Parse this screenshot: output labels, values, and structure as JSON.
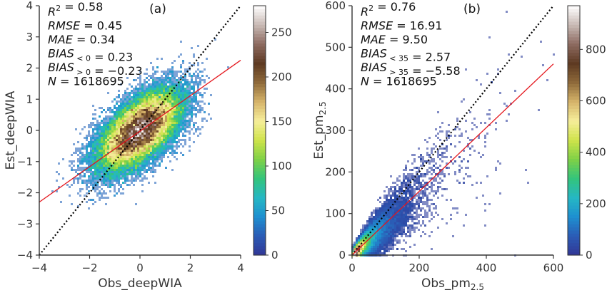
{
  "colors": {
    "regression": "#e4161d",
    "identity": "#000000",
    "axis": "#333333",
    "colormap": [
      "#313695",
      "#2b5bb5",
      "#1e8fd0",
      "#25b7c4",
      "#33c47c",
      "#7ed147",
      "#cfe34a",
      "#f6ee9a",
      "#d6b46a",
      "#8f6a3a",
      "#5e3a22",
      "#8c6a60",
      "#c8b9b4",
      "#ffffff"
    ]
  },
  "chart_data": [
    {
      "panel_label": "(a)",
      "type": "heatmap",
      "xlabel": "Obs_deepWIA",
      "ylabel": "Est_deepWIA",
      "xlim": [
        -4,
        4
      ],
      "ylim": [
        -4,
        4
      ],
      "xticks": [
        "−4",
        "−2",
        "0",
        "2",
        "4"
      ],
      "yticks": [
        "−4",
        "−3",
        "−2",
        "−1",
        "0",
        "1",
        "2",
        "3",
        "4"
      ],
      "stats": [
        {
          "name": "R²",
          "value": "0.58"
        },
        {
          "name": "RMSE",
          "value": "0.45"
        },
        {
          "name": "MAE",
          "value": "0.34"
        },
        {
          "name": "BIAS<0",
          "value": "0.23"
        },
        {
          "name": "BIAS>0",
          "value": "−0.23"
        },
        {
          "name": "N",
          "value": "1618695"
        }
      ],
      "identity_line": [
        [
          -4,
          -4
        ],
        [
          4,
          4
        ]
      ],
      "regression_line": [
        [
          -4,
          -2.3
        ],
        [
          4,
          2.25
        ]
      ],
      "colorbar": {
        "min": 0,
        "max": 280,
        "ticks": [
          "0",
          "50",
          "100",
          "150",
          "200",
          "250"
        ]
      },
      "density": {
        "center": [
          0,
          0
        ],
        "sigma_major": 0.95,
        "sigma_minor": 0.45,
        "angle_deg": 34,
        "peak_count": 275
      }
    },
    {
      "panel_label": "(b)",
      "type": "heatmap",
      "xlabel": "Obs_pm",
      "xlabel_sub": "2.5",
      "ylabel": "Est_pm",
      "ylabel_sub": "2.5",
      "xlim": [
        0,
        600
      ],
      "ylim": [
        0,
        600
      ],
      "xticks": [
        "0",
        "200",
        "400",
        "600"
      ],
      "yticks": [
        "0",
        "100",
        "200",
        "300",
        "400",
        "500",
        "600"
      ],
      "stats": [
        {
          "name": "R²",
          "value": "0.76"
        },
        {
          "name": "RMSE",
          "value": "16.91"
        },
        {
          "name": "MAE",
          "value": "9.50"
        },
        {
          "name": "BIAS<35",
          "value": "2.57"
        },
        {
          "name": "BIAS>35",
          "value": "−5.58"
        },
        {
          "name": "N",
          "value": "1618695"
        }
      ],
      "identity_line": [
        [
          0,
          0
        ],
        [
          600,
          600
        ]
      ],
      "regression_line": [
        [
          0,
          0
        ],
        [
          600,
          460
        ]
      ],
      "colorbar": {
        "min": 0,
        "max": 970,
        "ticks": [
          "0",
          "200",
          "400",
          "600",
          "800"
        ]
      },
      "density": {
        "peak_count": 960
      }
    }
  ]
}
